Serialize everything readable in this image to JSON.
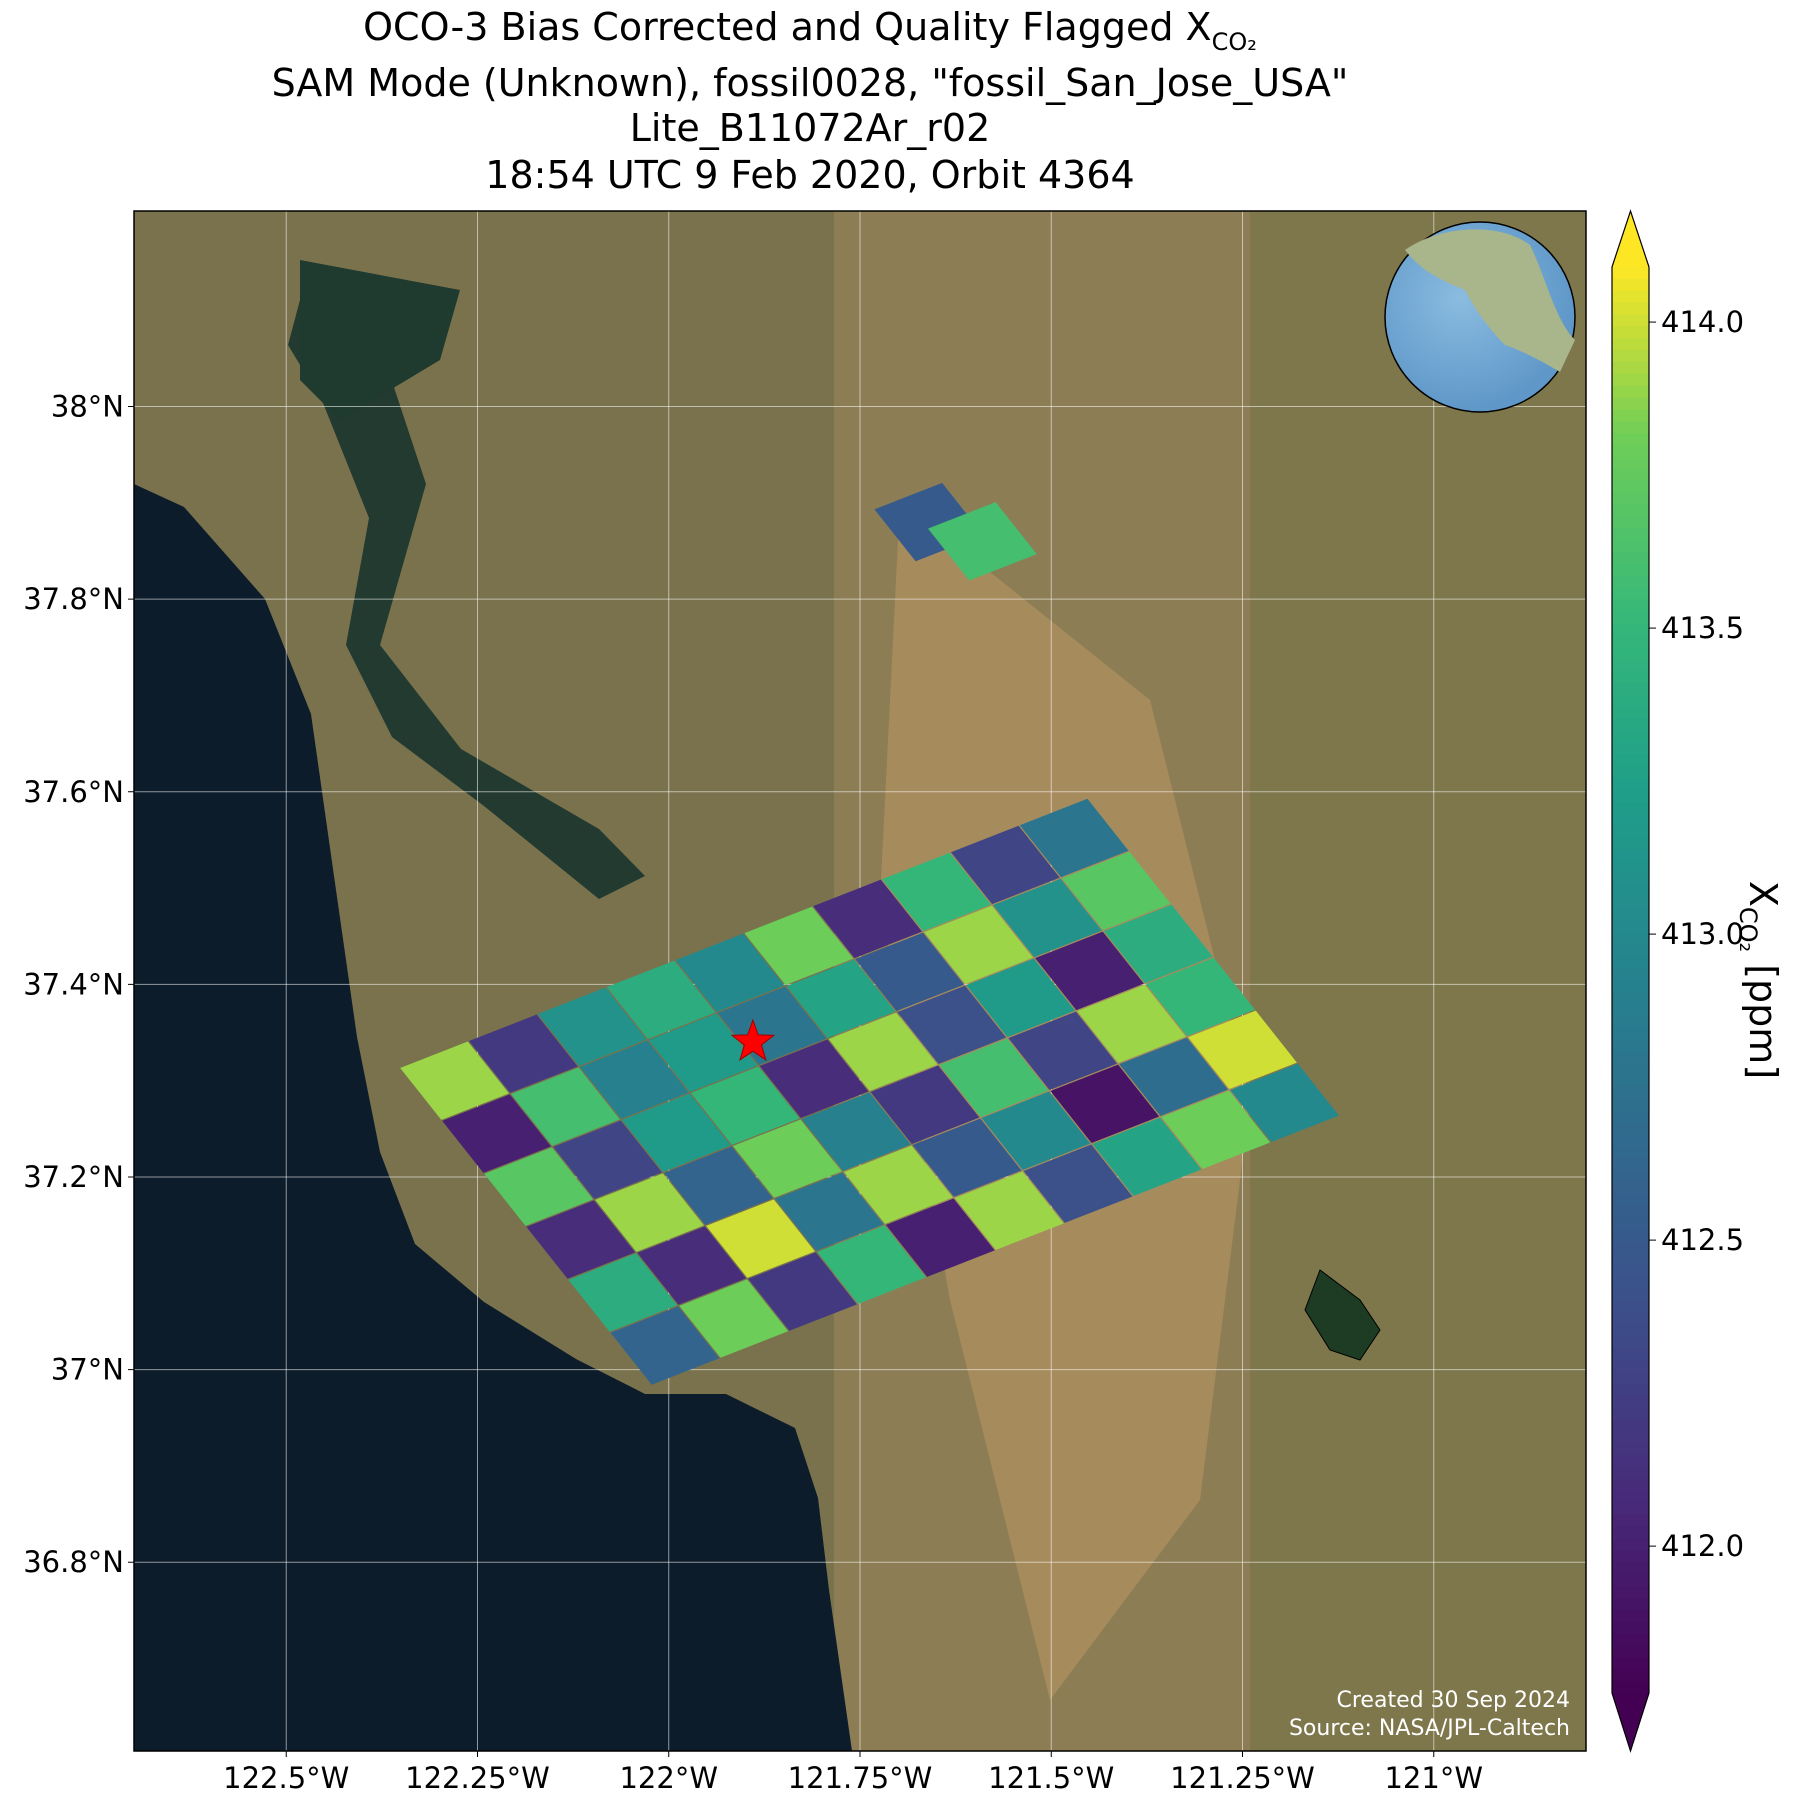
{
  "chart_data": {
    "type": "map",
    "title": "OCO-3 Bias Corrected and Quality Flagged X",
    "title_subscript": "CO₂",
    "subtitles": [
      "SAM Mode (Unknown), fossil0028, \"fossil_San_Jose_USA\"",
      "Lite_B11072Ar_r02",
      "18:54 UTC 9 Feb 2020, Orbit 4364"
    ],
    "xlim": [
      -122.699,
      -120.801
    ],
    "ylim": [
      36.604,
      38.203
    ],
    "xticks": [
      {
        "value": -122.5,
        "label": "122.5°W"
      },
      {
        "value": -122.25,
        "label": "122.25°W"
      },
      {
        "value": -122,
        "label": "122°W"
      },
      {
        "value": -121.75,
        "label": "121.75°W"
      },
      {
        "value": -121.5,
        "label": "121.5°W"
      },
      {
        "value": -121.25,
        "label": "121.25°W"
      },
      {
        "value": -121,
        "label": "121°W"
      }
    ],
    "yticks": [
      {
        "value": 38,
        "label": "38°N"
      },
      {
        "value": 37.8,
        "label": "37.8°N"
      },
      {
        "value": 37.6,
        "label": "37.6°N"
      },
      {
        "value": 37.4,
        "label": "37.4°N"
      },
      {
        "value": 37.2,
        "label": "37.2°N"
      },
      {
        "value": 37,
        "label": "37°N"
      },
      {
        "value": 36.8,
        "label": "36.8°N"
      }
    ],
    "grid": true,
    "colormap": "viridis",
    "clim": [
      411.76,
      414.09
    ],
    "cticks": [
      {
        "value": 412,
        "label": "412.0"
      },
      412.5,
      {
        "value": 413,
        "label": "413.0"
      },
      413.5,
      {
        "value": 414,
        "label": "414.0"
      }
    ],
    "colorbar_label": "X",
    "colorbar_label_subscript": "CO₂",
    "colorbar_label_unit": " [ppm]",
    "target_lon": -121.89,
    "target_lat": 37.34,
    "annotations": [
      "Created 30 Sep 2024",
      "Source: NASA/JPL-Caltech"
    ],
    "lon": [
      -122.28,
      -122.19,
      -122.1,
      -122.01,
      -121.92,
      -121.83,
      -121.74,
      -121.65,
      -121.56,
      -121.47,
      -122.225,
      -122.135,
      -122.045,
      -121.955,
      -121.865,
      -121.775,
      -121.685,
      -121.595,
      -121.505,
      -121.415,
      -122.17,
      -122.08,
      -121.99,
      -121.9,
      -121.81,
      -121.72,
      -121.63,
      -121.54,
      -121.45,
      -121.36,
      -122.115,
      -122.025,
      -121.935,
      -121.845,
      -121.755,
      -121.665,
      -121.575,
      -121.485,
      -121.395,
      -121.305,
      -122.06,
      -121.97,
      -121.88,
      -121.79,
      -121.7,
      -121.61,
      -121.52,
      -121.43,
      -121.34,
      -121.25,
      -122.005,
      -121.915,
      -121.825,
      -121.735,
      -121.645,
      -121.555,
      -121.465,
      -121.375,
      -121.285,
      -121.195,
      -121.66,
      -121.59
    ],
    "lat": [
      37.3,
      37.328,
      37.356,
      37.384,
      37.412,
      37.44,
      37.468,
      37.496,
      37.524,
      37.552,
      37.245,
      37.273,
      37.301,
      37.329,
      37.357,
      37.385,
      37.413,
      37.441,
      37.469,
      37.497,
      37.19,
      37.218,
      37.246,
      37.274,
      37.302,
      37.33,
      37.358,
      37.386,
      37.414,
      37.442,
      37.135,
      37.163,
      37.191,
      37.219,
      37.247,
      37.275,
      37.303,
      37.331,
      37.359,
      37.387,
      37.08,
      37.108,
      37.136,
      37.164,
      37.192,
      37.22,
      37.248,
      37.276,
      37.304,
      37.332,
      37.025,
      37.053,
      37.081,
      37.109,
      37.137,
      37.165,
      37.193,
      37.221,
      37.249,
      37.277,
      37.88,
      37.86
    ],
    "values": [
      413.9,
      412.2,
      413.1,
      413.4,
      413.0,
      413.8,
      412.1,
      413.5,
      412.3,
      412.8,
      412.0,
      413.6,
      412.9,
      413.2,
      412.8,
      413.3,
      412.5,
      413.9,
      413.1,
      413.7,
      413.7,
      412.3,
      413.2,
      413.5,
      412.1,
      413.9,
      412.4,
      413.2,
      412.0,
      413.4,
      412.1,
      413.9,
      412.6,
      413.8,
      412.9,
      412.2,
      413.6,
      412.3,
      413.9,
      413.5,
      413.4,
      412.1,
      414.0,
      412.8,
      413.9,
      412.5,
      413.0,
      411.9,
      412.7,
      414.0,
      412.6,
      413.8,
      412.2,
      413.5,
      412.0,
      413.9,
      412.4,
      413.3,
      413.8,
      413.0,
      412.5,
      413.6
    ]
  }
}
